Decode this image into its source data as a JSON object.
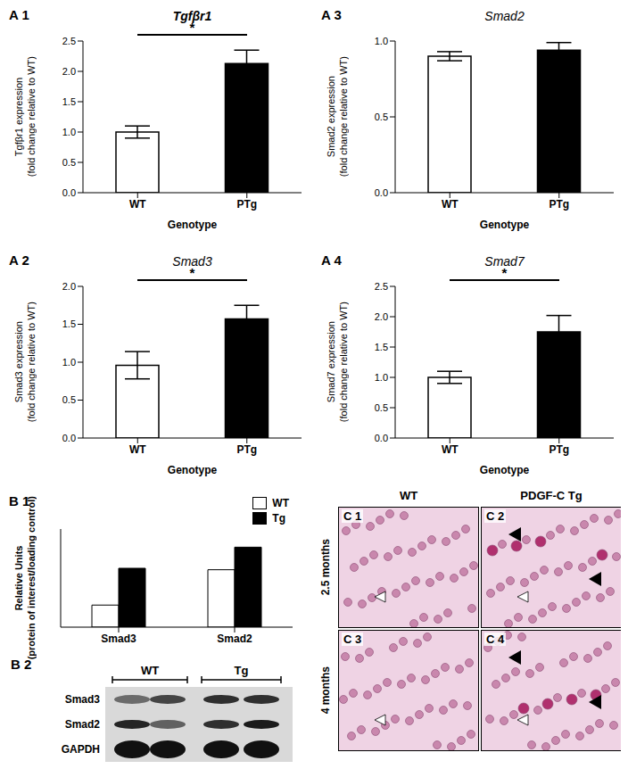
{
  "chart_data": [
    {
      "panel": "A 1",
      "type": "bar",
      "title": "Tgfβr1",
      "y_label": "Tgfβr1 expression (fold change relative to WT)",
      "x_label": "Genotype",
      "categories": [
        "WT",
        "PTg"
      ],
      "values": [
        1.0,
        2.13
      ],
      "errors": [
        0.1,
        0.22
      ],
      "colors": [
        "#ffffff",
        "#000000"
      ],
      "ylim": [
        0,
        2.5
      ],
      "yticks": [
        {
          "value": 0,
          "label": "0.0"
        },
        {
          "value": 0.5,
          "label": "0.5"
        },
        {
          "value": 1,
          "label": "1.0"
        },
        {
          "value": 1.5,
          "label": "1.5"
        },
        {
          "value": 2,
          "label": "2.0"
        },
        {
          "value": 2.5,
          "label": "2.5"
        }
      ],
      "annotations": [
        "*"
      ]
    },
    {
      "panel": "A 3",
      "type": "bar",
      "title": "Smad2",
      "y_label": "Smad2 expression (fold change relative to WT)",
      "x_label": "Genotype",
      "categories": [
        "WT",
        "PTg"
      ],
      "values": [
        0.9,
        0.94
      ],
      "errors": [
        0.03,
        0.05
      ],
      "colors": [
        "#ffffff",
        "#000000"
      ],
      "ylim": [
        0,
        1
      ],
      "yticks": [
        {
          "value": 0,
          "label": "0.0"
        },
        {
          "value": 0.5,
          "label": "0.5"
        },
        {
          "value": 1,
          "label": "1.0"
        }
      ]
    },
    {
      "panel": "A 2",
      "type": "bar",
      "title": "Smad3",
      "y_label": "Smad3  expression (fold change relative to WT)",
      "x_label": "Genotype",
      "categories": [
        "WT",
        "PTg"
      ],
      "values": [
        0.96,
        1.57
      ],
      "errors": [
        0.18,
        0.18
      ],
      "colors": [
        "#ffffff",
        "#000000"
      ],
      "ylim": [
        0,
        2
      ],
      "yticks": [
        {
          "value": 0,
          "label": "0.0"
        },
        {
          "value": 0.5,
          "label": "0.5"
        },
        {
          "value": 1,
          "label": "1.0"
        },
        {
          "value": 1.5,
          "label": "1.5"
        },
        {
          "value": 2,
          "label": "2.0"
        }
      ],
      "annotations": [
        "*"
      ]
    },
    {
      "panel": "A 4",
      "type": "bar",
      "title": "Smad7",
      "y_label": "Smad7 expression (fold change relative to WT)",
      "x_label": "Genotype",
      "categories": [
        "WT",
        "PTg"
      ],
      "values": [
        1.0,
        1.75
      ],
      "errors": [
        0.1,
        0.27
      ],
      "colors": [
        "#ffffff",
        "#000000"
      ],
      "ylim": [
        0,
        2.5
      ],
      "yticks": [
        {
          "value": 0,
          "label": "0.0"
        },
        {
          "value": 0.5,
          "label": "0.5"
        },
        {
          "value": 1,
          "label": "1.0"
        },
        {
          "value": 1.5,
          "label": "1.5"
        },
        {
          "value": 2,
          "label": "2.0"
        },
        {
          "value": 2.5,
          "label": "2.5"
        }
      ],
      "annotations": [
        "*"
      ]
    },
    {
      "panel": "B 1",
      "type": "bar",
      "y_label": "Relative Units (protein of interest/loading control)",
      "categories": [
        "Smad3",
        "Smad2"
      ],
      "series": [
        {
          "name": "WT",
          "color": "#ffffff",
          "values": [
            0.45,
            1.17
          ]
        },
        {
          "name": "Tg",
          "color": "#000000",
          "values": [
            1.2,
            1.63
          ]
        }
      ],
      "ylim": [
        0,
        2
      ],
      "tick_labels": "x",
      "legend": "top-right"
    }
  ],
  "blot": {
    "panel": "B 2",
    "groups": [
      "WT",
      "Tg"
    ],
    "rows": [
      "Smad3",
      "Smad2",
      "GAPDH"
    ]
  },
  "histology": {
    "columns": [
      "WT",
      "PDGF-C Tg"
    ],
    "rows": [
      "2.5 months",
      "4 months"
    ],
    "panels": [
      "C 1",
      "C 2",
      "C 3",
      "C 4"
    ]
  }
}
